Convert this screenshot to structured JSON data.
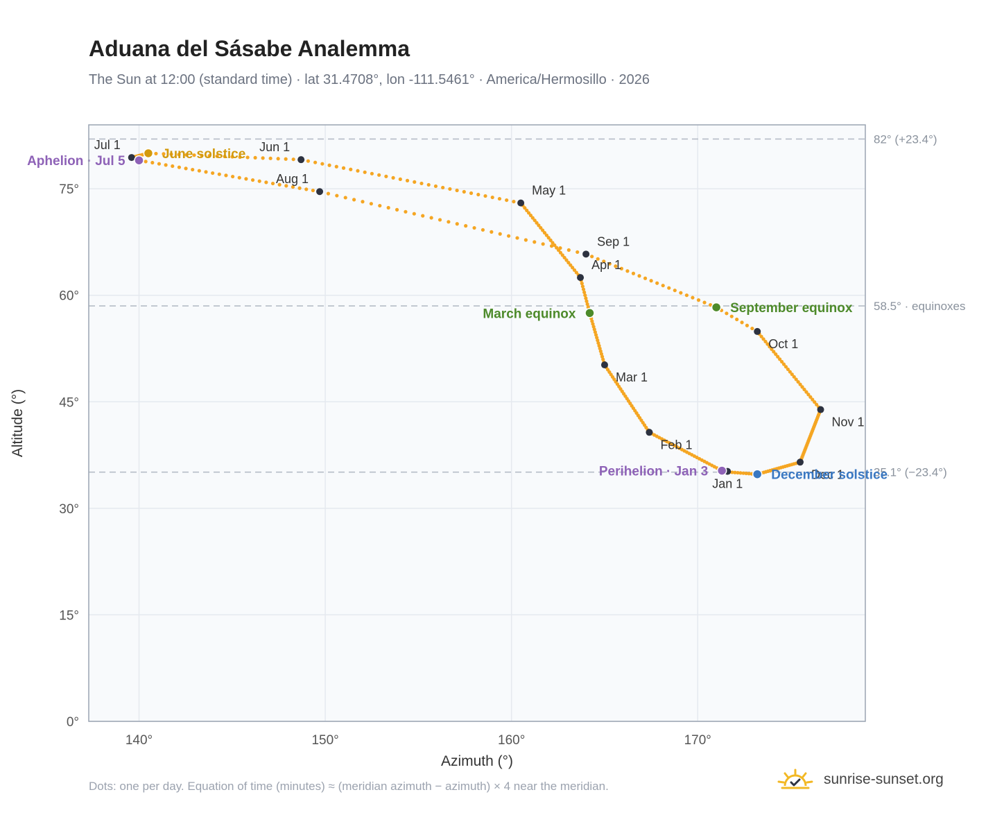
{
  "header": {
    "title": "Aduana del Sásabe Analemma",
    "subtitle": "The Sun at 12:00 (standard time) · lat 31.4708°, lon -111.5461° · America/Hermosillo · 2026"
  },
  "footer": {
    "note": "Dots: one per day. Equation of time (minutes) ≈ (meridian azimuth − azimuth) × 4 near the meridian.",
    "brand": "sunrise-sunset.org",
    "brand_icon": "sun-check-icon"
  },
  "colors": {
    "curve": "#f5a623",
    "month_marker": "#2d3240",
    "solstice_june": "#d39a0d",
    "solstice_december": "#3a78c2",
    "equinox": "#4d8a2a",
    "apsis": "#8e62b7",
    "reference_line": "#b5bcc7",
    "plot_bg": "#f8fafc",
    "grid": "#e5e9ef",
    "border": "#9aa4b2"
  },
  "chart_data": {
    "type": "scatter",
    "title": "Aduana del Sásabe Analemma",
    "xlabel": "Azimuth (°)",
    "ylabel": "Altitude (°)",
    "xlim": [
      137.3,
      179
    ],
    "ylim": [
      0,
      84
    ],
    "x_ticks": [
      140,
      150,
      160,
      170
    ],
    "x_tick_labels": [
      "140°",
      "150°",
      "160°",
      "170°"
    ],
    "y_ticks": [
      0,
      15,
      30,
      45,
      60,
      75
    ],
    "y_tick_labels": [
      "0°",
      "15°",
      "30°",
      "45°",
      "60°",
      "75°"
    ],
    "grid": true,
    "series_keypoints": [
      {
        "doy": 1,
        "az": 171.6,
        "alt": 35.2
      },
      {
        "doy": 3,
        "az": 171.3,
        "alt": 35.3
      },
      {
        "doy": 32,
        "az": 167.4,
        "alt": 40.7
      },
      {
        "doy": 60,
        "az": 165.0,
        "alt": 50.2
      },
      {
        "doy": 79,
        "az": 164.2,
        "alt": 57.5
      },
      {
        "doy": 91,
        "az": 163.7,
        "alt": 62.5
      },
      {
        "doy": 121,
        "az": 160.5,
        "alt": 73.0
      },
      {
        "doy": 152,
        "az": 148.7,
        "alt": 79.1
      },
      {
        "doy": 172,
        "az": 140.5,
        "alt": 80.0
      },
      {
        "doy": 182,
        "az": 139.6,
        "alt": 79.4
      },
      {
        "doy": 186,
        "az": 140.0,
        "alt": 79.0
      },
      {
        "doy": 213,
        "az": 149.7,
        "alt": 74.6
      },
      {
        "doy": 244,
        "az": 164.0,
        "alt": 65.8
      },
      {
        "doy": 266,
        "az": 171.0,
        "alt": 58.3
      },
      {
        "doy": 274,
        "az": 173.2,
        "alt": 54.9
      },
      {
        "doy": 305,
        "az": 176.6,
        "alt": 43.9
      },
      {
        "doy": 335,
        "az": 175.5,
        "alt": 36.5
      },
      {
        "doy": 355,
        "az": 173.2,
        "alt": 34.8
      },
      {
        "doy": 365,
        "az": 171.7,
        "alt": 35.1
      }
    ],
    "month_markers": [
      {
        "label": "Jan 1",
        "az": 171.6,
        "alt": 35.2,
        "anchor": "below"
      },
      {
        "label": "Feb 1",
        "az": 167.4,
        "alt": 40.7,
        "anchor": "below-right"
      },
      {
        "label": "Mar 1",
        "az": 165.0,
        "alt": 50.2,
        "anchor": "below-right"
      },
      {
        "label": "Apr 1",
        "az": 163.7,
        "alt": 62.5,
        "anchor": "above-right"
      },
      {
        "label": "May 1",
        "az": 160.5,
        "alt": 73.0,
        "anchor": "above-right"
      },
      {
        "label": "Jun 1",
        "az": 148.7,
        "alt": 79.1,
        "anchor": "above-left"
      },
      {
        "label": "Jul 1",
        "az": 139.6,
        "alt": 79.4,
        "anchor": "above-left"
      },
      {
        "label": "Aug 1",
        "az": 149.7,
        "alt": 74.6,
        "anchor": "above-left"
      },
      {
        "label": "Sep 1",
        "az": 164.0,
        "alt": 65.8,
        "anchor": "above-right"
      },
      {
        "label": "Oct 1",
        "az": 173.2,
        "alt": 54.9,
        "anchor": "below-right"
      },
      {
        "label": "Nov 1",
        "az": 176.6,
        "alt": 43.9,
        "anchor": "below-right"
      },
      {
        "label": "Dec 1",
        "az": 175.5,
        "alt": 36.5,
        "anchor": "below-right"
      }
    ],
    "events": [
      {
        "label": "June solstice",
        "az": 140.5,
        "alt": 80.0,
        "color_key": "solstice_june",
        "anchor": "right"
      },
      {
        "label": "March equinox",
        "az": 164.2,
        "alt": 57.5,
        "color_key": "equinox",
        "anchor": "left"
      },
      {
        "label": "September equinox",
        "az": 171.0,
        "alt": 58.3,
        "color_key": "equinox",
        "anchor": "right"
      },
      {
        "label": "December solstice",
        "az": 173.2,
        "alt": 34.8,
        "color_key": "solstice_december",
        "anchor": "right"
      },
      {
        "label": "Perihelion · Jan 3",
        "az": 171.3,
        "alt": 35.3,
        "color_key": "apsis",
        "anchor": "left"
      },
      {
        "label": "Aphelion · Jul 5",
        "az": 140.0,
        "alt": 79.0,
        "color_key": "apsis",
        "anchor": "left"
      }
    ],
    "reference_lines": [
      {
        "alt": 82.0,
        "label": "82° (+23.4°)"
      },
      {
        "alt": 58.5,
        "label": "58.5° · equinoxes"
      },
      {
        "alt": 35.1,
        "label": "35.1° (−23.4°)"
      }
    ]
  }
}
